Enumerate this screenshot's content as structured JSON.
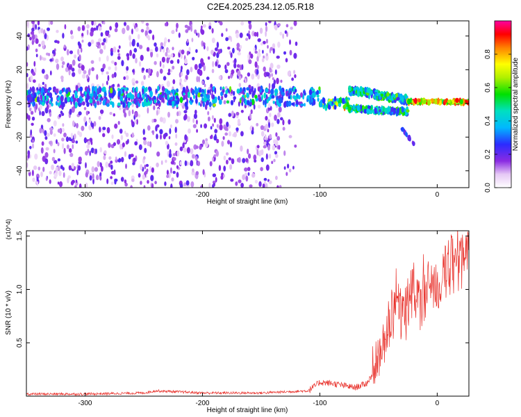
{
  "title": "C2E4.2025.234.12.05.R18",
  "chart_data": [
    {
      "type": "heatmap",
      "xlabel": "Height of straight line (km)",
      "ylabel": "Frequency (Hz)",
      "xlim": [
        -350,
        27
      ],
      "ylim": [
        -50,
        49
      ],
      "xticks": [
        -300,
        -200,
        -100,
        0
      ],
      "yticks": [
        -40,
        -20,
        0,
        20,
        40
      ],
      "colorbar": {
        "label": "Normalized spectral amplitude",
        "range": [
          0.0,
          1.0
        ],
        "ticks": [
          0.0,
          0.2,
          0.4,
          0.6,
          0.8
        ],
        "colormap": "white-violet-blue-cyan-green-yellow-red-magenta"
      },
      "features": [
        {
          "kind": "scattered_noise",
          "x_range": [
            -350,
            -120
          ],
          "y_range": [
            -50,
            49
          ],
          "level": 0.12
        },
        {
          "kind": "band",
          "x_range": [
            -350,
            -100
          ],
          "center_hz": 4,
          "width_hz": 10,
          "level": 0.3
        },
        {
          "kind": "band",
          "x_range": [
            -100,
            -75
          ],
          "center_hz": 0,
          "width_hz": 6,
          "level": 0.5
        },
        {
          "kind": "split_signal",
          "x_range": [
            -75,
            -25
          ],
          "upper_hz": 8,
          "lower_hz": -3,
          "level": 0.45
        },
        {
          "kind": "tail",
          "x": [
            -30,
            -20
          ],
          "y": [
            -15,
            -24
          ],
          "level": 0.25
        },
        {
          "kind": "narrow_line",
          "x_range": [
            -25,
            27
          ],
          "center_hz": 1,
          "level": 0.9
        }
      ]
    },
    {
      "type": "line",
      "xlabel": "Height of straight line (km)",
      "ylabel": "SNR (10 * v/v)",
      "y_multiplier": "(x10^4)",
      "xlim": [
        -350,
        27
      ],
      "ylim": [
        0,
        1.55
      ],
      "xticks": [
        -300,
        -200,
        -100,
        0
      ],
      "yticks": [
        0.5,
        1.0,
        1.5
      ],
      "color": "#e8302a",
      "series": [
        {
          "x": [
            -350,
            -300,
            -250,
            -240,
            -200,
            -150,
            -110,
            -100,
            -90,
            -80,
            -70,
            -60,
            -50,
            -45,
            -40,
            -35,
            -30,
            -25,
            -20,
            -15,
            -10,
            -5,
            0,
            5,
            10,
            15,
            20,
            27
          ],
          "y": [
            0.02,
            0.02,
            0.03,
            0.05,
            0.03,
            0.03,
            0.05,
            0.13,
            0.12,
            0.1,
            0.08,
            0.12,
            0.3,
            0.5,
            0.7,
            0.9,
            0.8,
            0.9,
            1.0,
            0.85,
            0.95,
            1.1,
            1.0,
            1.1,
            1.25,
            1.3,
            1.35,
            1.38
          ]
        }
      ]
    }
  ]
}
